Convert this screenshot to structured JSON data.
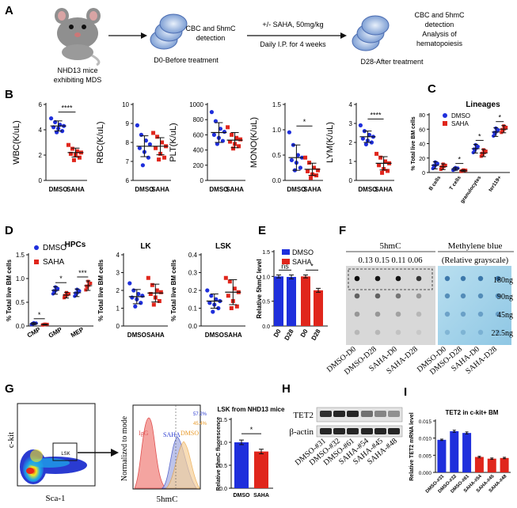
{
  "panels": {
    "A": {
      "label": "A",
      "mouse_caption_1": "NHD13 mice",
      "mouse_caption_2": "exhibiting MDS",
      "step1_text_1": "CBC and 5hmC",
      "step1_text_2": "detection",
      "d0_label": "D0-Before treatment",
      "treatment_1": "+/- SAHA, 50mg/kg",
      "treatment_2": "Daily I.P. for 4 weeks",
      "d28_label": "D28-After treatment",
      "step2_text_1": "CBC and 5hmC",
      "step2_text_2": "detection",
      "step2_text_3": "Analysis of",
      "step2_text_4": "hematopoiesis"
    },
    "B": {
      "label": "B"
    },
    "C": {
      "label": "C"
    },
    "D": {
      "label": "D"
    },
    "E": {
      "label": "E"
    },
    "F": {
      "label": "F",
      "header_5hmc": "5hmC",
      "header_mb": "Methylene blue",
      "values": "0.13 0.15  0.11 0.06",
      "relative": "(Relative grayscale)",
      "amounts": [
        "180ng",
        "90ng",
        "45ng",
        "22.5ng"
      ],
      "lanes": [
        "DMSO-D0",
        "DMSO-D28",
        "SAHA-D0",
        "SAHA-D28"
      ]
    },
    "G": {
      "label": "G",
      "ckit": "c-kit",
      "sca1": "Sca-1",
      "lsk": "LSK",
      "normalized": "Normalized to mode",
      "x5hmc": "5hmC",
      "igg": "IgG",
      "saha": "SAHA",
      "dmso": "DMSO",
      "pct1": "57.2%",
      "pct2": "45.4%"
    },
    "H": {
      "label": "H",
      "tet2": "TET2",
      "bactin": "β-actin",
      "lanes": [
        "DMSO-#31",
        "DMSO-#32",
        "DMSO-#61",
        "SAHA-#54",
        "SAHA-#45",
        "SAHA-#48"
      ]
    },
    "I": {
      "label": "I"
    }
  },
  "chart_data": [
    {
      "id": "B-WBC",
      "type": "scatter",
      "ylabel": "WBC(K/uL)",
      "categories": [
        "DMSO",
        "SAHA"
      ],
      "ylim": [
        0,
        6
      ],
      "yticks": [
        0,
        2,
        4,
        6
      ],
      "means": [
        4.3,
        2.2
      ],
      "sd": [
        0.4,
        0.35
      ],
      "significance": "****",
      "points": [
        [
          4.9,
          4.6,
          4.4,
          4.3,
          4.2,
          4.1,
          3.9,
          3.8
        ],
        [
          2.8,
          2.5,
          2.3,
          2.2,
          2.1,
          2.0,
          1.8,
          1.6
        ]
      ]
    },
    {
      "id": "B-RBC",
      "type": "scatter",
      "ylabel": "RBC(K/uL)",
      "categories": [
        "DMSO",
        "SAHA"
      ],
      "ylim": [
        6,
        10
      ],
      "yticks": [
        6,
        7,
        8,
        9,
        10
      ],
      "means": [
        7.8,
        7.8
      ],
      "sd": [
        0.55,
        0.45
      ],
      "significance": "",
      "points": [
        [
          8.9,
          8.4,
          8.1,
          7.9,
          7.7,
          7.5,
          7.2,
          6.8
        ],
        [
          8.5,
          8.3,
          8.0,
          7.8,
          7.7,
          7.4,
          7.2,
          7.1
        ]
      ]
    },
    {
      "id": "B-PLT",
      "type": "scatter",
      "ylabel": "PLT(K/uL)",
      "categories": [
        "DMSO",
        "SAHA"
      ],
      "ylim": [
        0,
        1000
      ],
      "yticks": [
        0,
        200,
        400,
        600,
        800,
        1000
      ],
      "means": [
        630,
        530
      ],
      "sd": [
        130,
        100
      ],
      "significance": "",
      "points": [
        [
          900,
          780,
          680,
          640,
          600,
          560,
          520,
          480
        ],
        [
          700,
          600,
          560,
          540,
          510,
          480,
          450,
          420
        ]
      ]
    },
    {
      "id": "B-MONO",
      "type": "scatter",
      "ylabel": "MONO(K/uL)",
      "categories": [
        "DMSO",
        "SAHA"
      ],
      "ylim": [
        0,
        1.5
      ],
      "yticks": [
        0.0,
        0.5,
        1.0,
        1.5
      ],
      "means": [
        0.45,
        0.22
      ],
      "sd": [
        0.25,
        0.12
      ],
      "significance": "*",
      "points": [
        [
          0.95,
          0.7,
          0.5,
          0.45,
          0.4,
          0.35,
          0.25,
          0.2
        ],
        [
          0.45,
          0.35,
          0.25,
          0.2,
          0.18,
          0.12,
          0.1,
          0.05
        ]
      ]
    },
    {
      "id": "B-LYM",
      "type": "scatter",
      "ylabel": "LYM(K/uL)",
      "categories": [
        "DMSO",
        "SAHA"
      ],
      "ylim": [
        0,
        4
      ],
      "yticks": [
        0,
        1,
        2,
        3,
        4
      ],
      "means": [
        2.3,
        0.9
      ],
      "sd": [
        0.3,
        0.35
      ],
      "significance": "****",
      "points": [
        [
          2.9,
          2.6,
          2.4,
          2.3,
          2.2,
          2.1,
          2.0,
          1.9
        ],
        [
          1.4,
          1.2,
          1.0,
          0.9,
          0.8,
          0.6,
          0.5,
          0.4
        ]
      ]
    },
    {
      "id": "C-Lineages",
      "type": "scatter",
      "title": "Lineages",
      "ylabel": "% Total live BM cells",
      "categories": [
        "B cells",
        "T cells",
        "granulocytes",
        "ter119+"
      ],
      "series": [
        "DMSO",
        "SAHA"
      ],
      "ylim": [
        0,
        80
      ],
      "yticks": [
        0,
        20,
        40,
        60,
        80
      ],
      "significance": [
        "",
        "*",
        "*",
        "*"
      ],
      "means": [
        [
          10,
          8
        ],
        [
          5,
          2.5
        ],
        [
          33,
          27
        ],
        [
          56,
          60
        ]
      ],
      "sd": [
        [
          5,
          4
        ],
        [
          2,
          1.2
        ],
        [
          6,
          5
        ],
        [
          6,
          5
        ]
      ]
    },
    {
      "id": "D-HPCs",
      "type": "scatter",
      "title": "HPCs",
      "ylabel": "% Total live BM cells",
      "categories": [
        "CMP",
        "GMP",
        "MEP"
      ],
      "series": [
        "DMSO",
        "SAHA"
      ],
      "ylim": [
        0,
        1.5
      ],
      "yticks": [
        0.0,
        0.5,
        1.0,
        1.5
      ],
      "significance": [
        "*",
        "*",
        "***"
      ],
      "means": [
        [
          0.05,
          0.03
        ],
        [
          0.75,
          0.65
        ],
        [
          0.7,
          0.85
        ]
      ],
      "sd": [
        [
          0.02,
          0.01
        ],
        [
          0.08,
          0.06
        ],
        [
          0.08,
          0.1
        ]
      ]
    },
    {
      "id": "D-LK",
      "type": "scatter",
      "title": "LK",
      "ylabel": "% Total live BM cells",
      "categories": [
        "DMSO",
        "SAHA"
      ],
      "ylim": [
        0,
        4
      ],
      "yticks": [
        0,
        1,
        2,
        3,
        4
      ],
      "means": [
        1.65,
        1.85
      ],
      "sd": [
        0.4,
        0.5
      ],
      "significance": "",
      "points": [
        [
          2.4,
          2.0,
          1.8,
          1.7,
          1.6,
          1.5,
          1.3,
          1.1
        ],
        [
          2.7,
          2.3,
          2.0,
          1.9,
          1.8,
          1.6,
          1.4,
          1.2
        ]
      ]
    },
    {
      "id": "D-LSK",
      "type": "scatter",
      "title": "LSK",
      "ylabel": "% Total live BM cells",
      "categories": [
        "DMSO",
        "SAHA"
      ],
      "ylim": [
        0,
        0.4
      ],
      "yticks": [
        0.0,
        0.1,
        0.2,
        0.3,
        0.4
      ],
      "means": [
        0.14,
        0.19
      ],
      "sd": [
        0.04,
        0.07
      ],
      "significance": "",
      "points": [
        [
          0.2,
          0.17,
          0.15,
          0.14,
          0.13,
          0.12,
          0.1,
          0.08
        ],
        [
          0.27,
          0.25,
          0.21,
          0.19,
          0.17,
          0.14,
          0.11,
          0.1
        ]
      ]
    },
    {
      "id": "E-5hmC",
      "type": "bar",
      "ylabel": "Relative 5hmC level",
      "groups": [
        "DMSO",
        "SAHA"
      ],
      "categories": [
        "D0",
        "D28"
      ],
      "values": [
        [
          1.0,
          0.99
        ],
        [
          1.0,
          0.72
        ]
      ],
      "errors": [
        [
          0.03,
          0.04
        ],
        [
          0.03,
          0.04
        ]
      ],
      "significance": [
        "ns",
        "*"
      ],
      "ylim": [
        0,
        1.5
      ],
      "yticks": [
        0.0,
        0.5,
        1.0,
        1.5
      ],
      "legend": [
        "DMSO",
        "SAHA"
      ]
    },
    {
      "id": "G-bar",
      "type": "bar",
      "title": "LSK from NHD13 mice",
      "ylabel": "Relative 5hmC fluorescence",
      "categories": [
        "DMSO",
        "SAHA"
      ],
      "values": [
        1.0,
        0.8
      ],
      "errors": [
        0.05,
        0.05
      ],
      "significance": "*",
      "ylim": [
        0,
        1.5
      ],
      "yticks": [
        0.0,
        0.5,
        1.0,
        1.5
      ]
    },
    {
      "id": "I-TET2",
      "type": "bar",
      "title": "TET2 in c-kit+ BM",
      "ylabel": "Relative TET2 mRNA level",
      "categories": [
        "DMSO-#31",
        "DMSO-#32",
        "DMSO-#61",
        "SAHA-#54",
        "SAHA-#45",
        "SAHA-#48"
      ],
      "values": [
        0.0095,
        0.012,
        0.0115,
        0.0045,
        0.004,
        0.0042
      ],
      "errors": [
        0.0002,
        0.0003,
        0.0003,
        0.0002,
        0.0002,
        0.0002
      ],
      "ylim": [
        0,
        0.015
      ],
      "yticks": [
        0.0,
        0.005,
        0.01,
        0.015
      ]
    }
  ]
}
